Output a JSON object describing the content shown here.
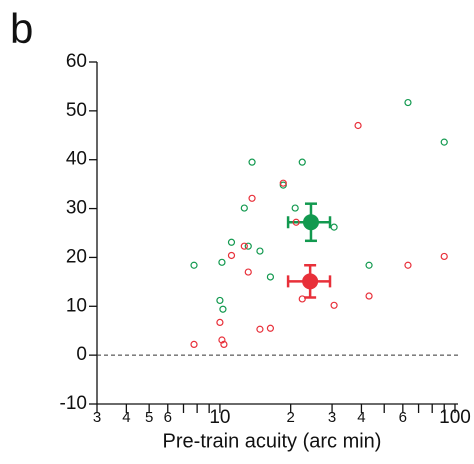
{
  "chart_data": {
    "type": "scatter",
    "panel_label": "b",
    "xlabel": "Pre-train acuity (arc min)",
    "log_x": true,
    "xlim": [
      3,
      103
    ],
    "ylim": [
      -10,
      60
    ],
    "yticks": [
      -10,
      0,
      10,
      20,
      30,
      40,
      50,
      60
    ],
    "xticks": [
      3,
      4,
      5,
      6,
      10,
      {
        "value": 20,
        "label": "2"
      },
      {
        "value": 30,
        "label": "3"
      },
      {
        "value": 40,
        "label": "4"
      },
      {
        "value": 60,
        "label": "6"
      },
      100
    ],
    "xminorticks": [
      7,
      8,
      9,
      50,
      70,
      80,
      90
    ],
    "hline": 0,
    "series": [
      {
        "color": "#12994f",
        "x": [
          7.76,
          10.2,
          11.2,
          13.2,
          12.7,
          13.7,
          10.0,
          10.3,
          14.8,
          16.4,
          18.6,
          20.9,
          22.4,
          30.6,
          43.1,
          63.1,
          90
        ],
        "values": [
          18.4,
          19.0,
          23.1,
          22.3,
          30.1,
          39.5,
          11.2,
          9.4,
          21.3,
          16.0,
          34.8,
          30.1,
          39.5,
          26.2,
          18.4,
          51.7,
          43.6
        ],
        "mean": {
          "x": 24.4,
          "y": 27.2,
          "yerr": 3.8,
          "x_range": [
            19.5,
            29.4
          ]
        }
      },
      {
        "color": "#e8303a",
        "x": [
          7.76,
          10.2,
          10.4,
          10.0,
          11.2,
          12.7,
          13.2,
          13.7,
          14.8,
          16.4,
          18.6,
          21.1,
          22.4,
          30.6,
          38.7,
          43.1,
          63.1,
          90
        ],
        "values": [
          2.2,
          3.1,
          2.2,
          6.7,
          20.4,
          22.3,
          17.0,
          32.1,
          5.3,
          5.5,
          35.2,
          27.2,
          11.5,
          10.2,
          47.0,
          12.1,
          18.4,
          20.2
        ],
        "mean": {
          "x": 24.2,
          "y": 15.1,
          "yerr": 3.3,
          "x_range": [
            19.5,
            29.4
          ]
        }
      }
    ]
  }
}
